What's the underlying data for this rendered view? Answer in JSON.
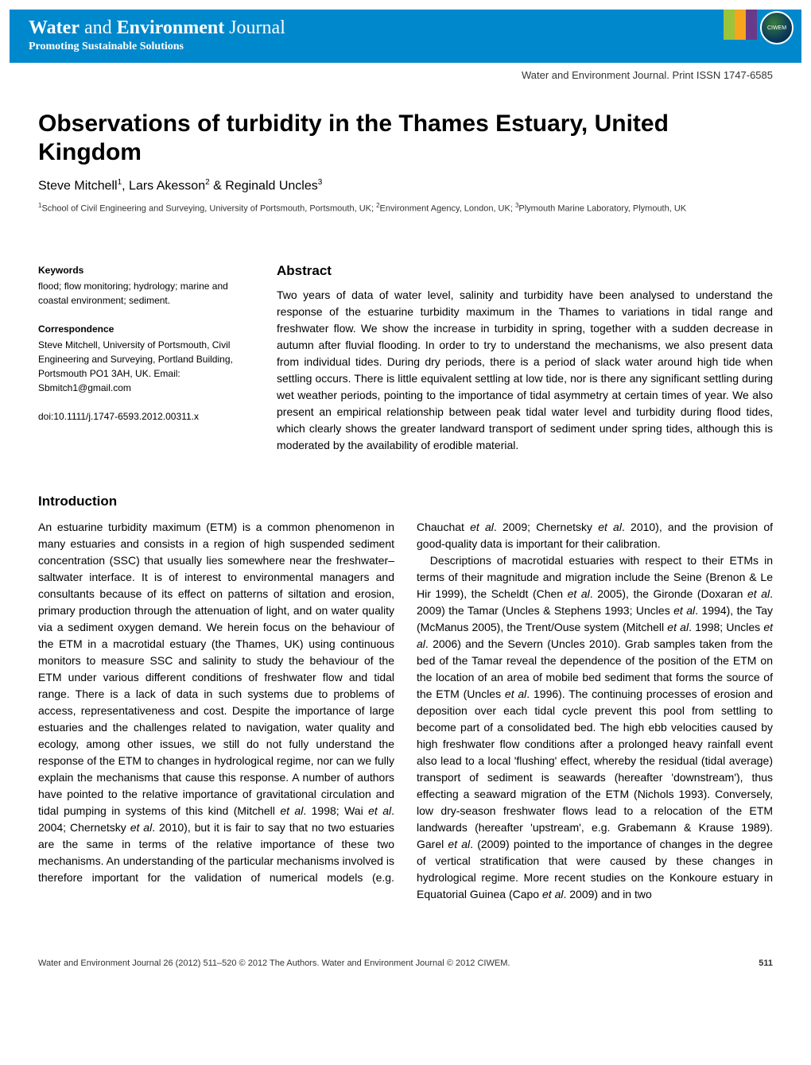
{
  "header": {
    "title_part1": "Water",
    "title_part2": " and ",
    "title_part3": "Environment",
    "title_part4": " Journal",
    "subtitle": "Promoting Sustainable Solutions",
    "logo_text": "CIWEM",
    "block_colors": [
      "#9ac43c",
      "#f7a51c",
      "#6a3a8a"
    ],
    "bg_color": "#0088cc"
  },
  "issn_line": "Water and Environment Journal. Print ISSN 1747-6585",
  "article": {
    "title": "Observations of turbidity in the Thames Estuary, United Kingdom",
    "authors_html": "Steve Mitchell¹, Lars Akesson² & Reginald Uncles³",
    "affiliations_html": "¹School of Civil Engineering and Surveying, University of Portsmouth, Portsmouth, UK; ²Environment Agency, London, UK; ³Plymouth Marine Laboratory, Plymouth, UK"
  },
  "meta": {
    "keywords_label": "Keywords",
    "keywords": "flood; flow monitoring; hydrology; marine and coastal environment; sediment.",
    "correspondence_label": "Correspondence",
    "correspondence": "Steve Mitchell, University of Portsmouth, Civil Engineering and Surveying, Portland Building, Portsmouth PO1 3AH, UK. Email: Sbmitch1@gmail.com",
    "doi": "doi:10.1111/j.1747-6593.2012.00311.x"
  },
  "abstract": {
    "title": "Abstract",
    "body": "Two years of data of water level, salinity and turbidity have been analysed to understand the response of the estuarine turbidity maximum in the Thames to variations in tidal range and freshwater flow. We show the increase in turbidity in spring, together with a sudden decrease in autumn after fluvial flooding. In order to try to understand the mechanisms, we also present data from individual tides. During dry periods, there is a period of slack water around high tide when settling occurs. There is little equivalent settling at low tide, nor is there any significant settling during wet weather periods, pointing to the importance of tidal asymmetry at certain times of year. We also present an empirical relationship between peak tidal water level and turbidity during flood tides, which clearly shows the greater landward transport of sediment under spring tides, although this is moderated by the availability of erodible material."
  },
  "intro": {
    "title": "Introduction",
    "para1": "An estuarine turbidity maximum (ETM) is a common phenomenon in many estuaries and consists in a region of high suspended sediment concentration (SSC) that usually lies somewhere near the freshwater–saltwater interface. It is of interest to environmental managers and consultants because of its effect on patterns of siltation and erosion, primary production through the attenuation of light, and on water quality via a sediment oxygen demand. We herein focus on the behaviour of the ETM in a macrotidal estuary (the Thames, UK) using continuous monitors to measure SSC and salinity to study the behaviour of the ETM under various different conditions of freshwater flow and tidal range. There is a lack of data in such systems due to problems of access, representativeness and cost. Despite the importance of large estuaries and the challenges related to navigation, water quality and ecology, among other issues, we still do not fully understand the response of the ETM to changes in hydrological regime, nor can we fully explain the mechanisms that cause this response. A number of authors have pointed to the relative importance of gravitational circulation and tidal pumping in systems of this kind (Mitchell et al. 1998; Wai et al. 2004; Chernetsky et al. 2010), but it is fair to say that no two estuaries are the same in terms of the relative importance of these two mechanisms. An understanding of the particular mechanisms involved is therefore important for the validation of numerical models (e.g. Chauchat et al. 2009; Chernetsky et al. 2010), and the provision of good-quality data is important for their calibration.",
    "para2": "Descriptions of macrotidal estuaries with respect to their ETMs in terms of their magnitude and migration include the Seine (Brenon & Le Hir 1999), the Scheldt (Chen et al. 2005), the Gironde (Doxaran et al. 2009) the Tamar (Uncles & Stephens 1993; Uncles et al. 1994), the Tay (McManus 2005), the Trent/Ouse system (Mitchell et al. 1998; Uncles et al. 2006) and the Severn (Uncles 2010). Grab samples taken from the bed of the Tamar reveal the dependence of the position of the ETM on the location of an area of mobile bed sediment that forms the source of the ETM (Uncles et al. 1996). The continuing processes of erosion and deposition over each tidal cycle prevent this pool from settling to become part of a consolidated bed. The high ebb velocities caused by high freshwater flow conditions after a prolonged heavy rainfall event also lead to a local 'flushing' effect, whereby the residual (tidal average) transport of sediment is seawards (hereafter 'downstream'), thus effecting a seaward migration of the ETM (Nichols 1993). Conversely, low dry-season freshwater flows lead to a relocation of the ETM landwards (hereafter 'upstream', e.g. Grabemann & Krause 1989). Garel et al. (2009) pointed to the importance of changes in the degree of vertical stratification that were caused by these changes in hydrological regime. More recent studies on the Konkoure estuary in Equatorial Guinea (Capo et al. 2009) and in two"
  },
  "footer": {
    "left": "Water and Environment Journal 26 (2012) 511–520 © 2012 The Authors. Water and Environment Journal © 2012 CIWEM.",
    "page": "511"
  }
}
